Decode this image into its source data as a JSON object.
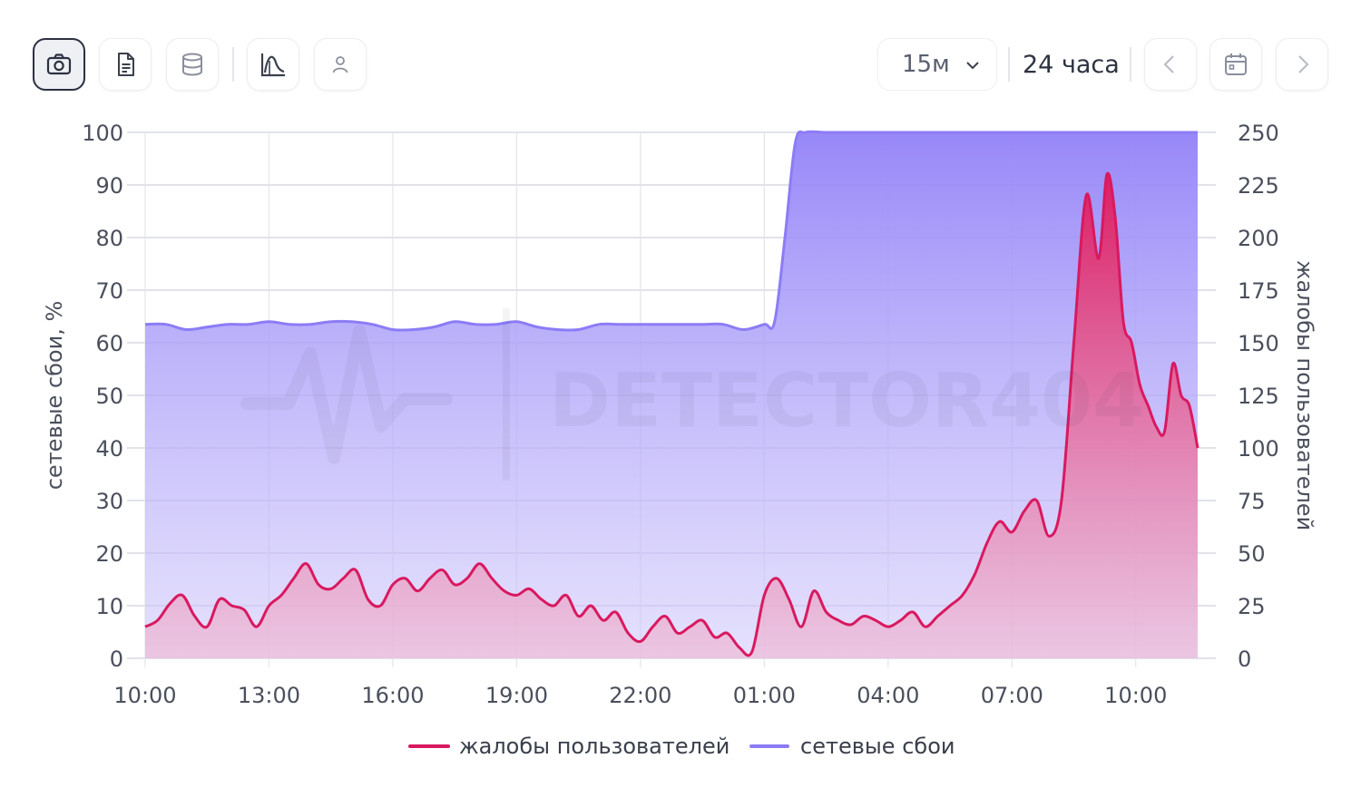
{
  "toolbar": {
    "buttons": [
      {
        "icon": "camera-icon",
        "active": true
      },
      {
        "icon": "document-icon",
        "active": false
      },
      {
        "icon": "database-icon",
        "active": false
      },
      {
        "icon": "chart-icon",
        "active": false
      },
      {
        "icon": "user-icon",
        "active": false
      }
    ],
    "interval": "15м",
    "range": "24 часа",
    "nav_icons": [
      "chevron-left-icon",
      "calendar-icon",
      "chevron-right-icon"
    ]
  },
  "watermark": "DETECTOR404",
  "chart_data": {
    "type": "area",
    "x_ticks": [
      "10:00",
      "13:00",
      "16:00",
      "19:00",
      "22:00",
      "01:00",
      "04:00",
      "07:00",
      "10:00"
    ],
    "x_hours": [
      0,
      3,
      6,
      9,
      12,
      15,
      18,
      21,
      24
    ],
    "x_range_hours": [
      0,
      25.5
    ],
    "y_left": {
      "label": "сетевые сбои, %",
      "ticks": [
        0,
        10,
        20,
        30,
        40,
        50,
        60,
        70,
        80,
        90,
        100
      ],
      "range": [
        0,
        100
      ]
    },
    "y_right": {
      "label": "жалобы пользователей",
      "ticks": [
        0,
        25,
        50,
        75,
        100,
        125,
        150,
        175,
        200,
        225,
        250
      ],
      "range": [
        0,
        250
      ]
    },
    "grid": true,
    "legend_position": "bottom-center",
    "colors": {
      "complaints": "#d9195f",
      "outages": "#8b7cf6"
    },
    "series": [
      {
        "name": "сетевые сбои",
        "axis": "left",
        "x": [
          0,
          0.5,
          1,
          1.5,
          2,
          2.5,
          3,
          3.5,
          4,
          4.5,
          5,
          5.5,
          6,
          6.5,
          7,
          7.5,
          8,
          8.5,
          9,
          9.5,
          10,
          10.5,
          11,
          11.5,
          12,
          12.5,
          13,
          13.5,
          14,
          14.5,
          15,
          15.25,
          15.5,
          15.75,
          16,
          16.5,
          17,
          18,
          19,
          20,
          21,
          22,
          23,
          24,
          25.5
        ],
        "values": [
          63.5,
          63.5,
          62.5,
          63,
          63.5,
          63.5,
          64,
          63.5,
          63.5,
          64,
          64,
          63.5,
          62.5,
          62.5,
          63,
          64,
          63.5,
          63.5,
          64,
          63,
          62.5,
          62.5,
          63.5,
          63.5,
          63.5,
          63.5,
          63.5,
          63.5,
          63.5,
          62.5,
          63.5,
          64,
          80,
          98,
          100,
          100,
          100,
          100,
          100,
          100,
          100,
          100,
          100,
          100,
          100
        ]
      },
      {
        "name": "жалобы пользователей",
        "axis": "right",
        "x": [
          0,
          0.3,
          0.6,
          0.9,
          1.2,
          1.5,
          1.8,
          2.1,
          2.4,
          2.7,
          3,
          3.3,
          3.6,
          3.9,
          4.2,
          4.5,
          4.8,
          5.1,
          5.4,
          5.7,
          6,
          6.3,
          6.6,
          6.9,
          7.2,
          7.5,
          7.8,
          8.1,
          8.4,
          8.7,
          9,
          9.3,
          9.6,
          9.9,
          10.2,
          10.5,
          10.8,
          11.1,
          11.4,
          11.7,
          12,
          12.3,
          12.6,
          12.9,
          13.2,
          13.5,
          13.8,
          14.1,
          14.4,
          14.7,
          15,
          15.3,
          15.6,
          15.9,
          16.2,
          16.5,
          16.8,
          17.1,
          17.4,
          17.7,
          18,
          18.3,
          18.6,
          18.9,
          19.2,
          19.5,
          19.8,
          20.1,
          20.4,
          20.7,
          21,
          21.3,
          21.6,
          21.9,
          22.2,
          22.5,
          22.8,
          23.1,
          23.3,
          23.5,
          23.7,
          23.9,
          24.1,
          24.3,
          24.5,
          24.7,
          24.9,
          25.1,
          25.3,
          25.5
        ],
        "values": [
          15,
          18,
          26,
          30,
          20,
          15,
          28,
          25,
          23,
          15,
          25,
          30,
          38,
          45,
          35,
          33,
          38,
          42,
          28,
          25,
          35,
          38,
          32,
          38,
          42,
          35,
          38,
          45,
          38,
          32,
          30,
          33,
          28,
          25,
          30,
          20,
          25,
          18,
          22,
          12,
          8,
          15,
          20,
          12,
          15,
          18,
          10,
          12,
          5,
          3,
          30,
          38,
          28,
          15,
          32,
          22,
          18,
          16,
          20,
          18,
          15,
          18,
          22,
          15,
          20,
          25,
          30,
          40,
          55,
          65,
          60,
          70,
          75,
          58,
          75,
          150,
          220,
          190,
          230,
          210,
          160,
          150,
          130,
          120,
          110,
          108,
          140,
          125,
          120,
          100
        ]
      }
    ]
  }
}
